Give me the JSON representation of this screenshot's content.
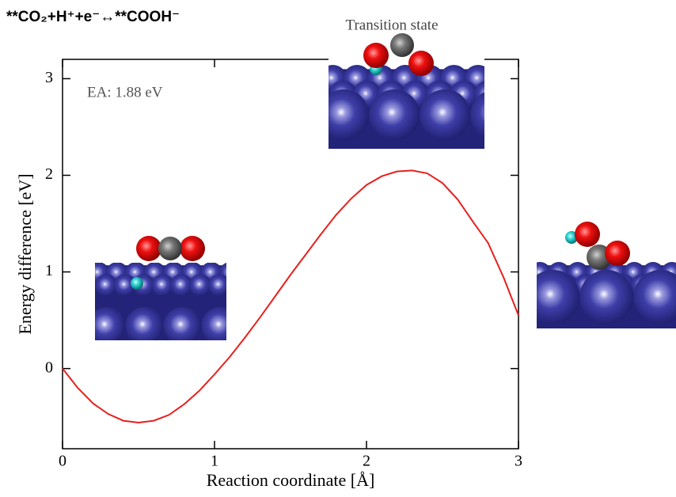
{
  "chart_data": {
    "type": "line",
    "title": "**CO₂+H⁺+e⁻↔**COOH⁻",
    "annotations": [
      "EA: 1.88 eV",
      "Transition state"
    ],
    "x_label": "Reaction coordinate [Å]",
    "y_label": "Energy difference [eV]",
    "x": [
      0,
      0.1,
      0.2,
      0.3,
      0.4,
      0.5,
      0.6,
      0.7,
      0.8,
      0.9,
      1.0,
      1.1,
      1.2,
      1.3,
      1.4,
      1.5,
      1.6,
      1.7,
      1.8,
      1.9,
      2.0,
      2.1,
      2.2,
      2.3,
      2.4,
      2.5,
      2.6,
      2.7,
      2.8,
      2.9,
      3.0
    ],
    "values": [
      0,
      -0.2,
      -0.36,
      -0.47,
      -0.54,
      -0.56,
      -0.54,
      -0.48,
      -0.37,
      -0.23,
      -0.06,
      0.12,
      0.32,
      0.53,
      0.75,
      0.97,
      1.18,
      1.39,
      1.59,
      1.76,
      1.9,
      1.99,
      2.04,
      2.05,
      2.02,
      1.92,
      1.75,
      1.52,
      1.3,
      0.95,
      0.55
    ],
    "color": "#e8201e",
    "xlim": [
      0,
      3
    ],
    "xticks": [
      0,
      1,
      2,
      3
    ],
    "ylim": [
      -0.83,
      3.2
    ],
    "yticks": [
      0,
      1,
      2,
      3
    ]
  }
}
